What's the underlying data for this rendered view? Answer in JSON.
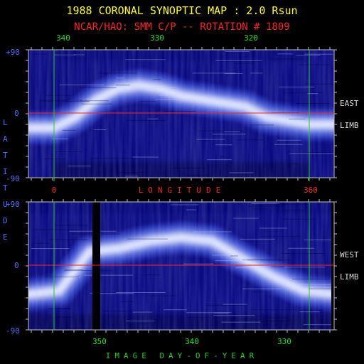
{
  "title": "1988 CORONAL SYNOPTIC MAP : 2.0 Rsun",
  "subtitle": "NCAR/HAO: SMM C/P -- ROTATION # 1809",
  "colors": {
    "title": "#ffff00",
    "subtitle": "#ff2020",
    "axis_label_blue": "#4a6cff",
    "bottom_label": "#20d020",
    "green_tick": "#20e020",
    "white_tick": "#d8d8d8",
    "red_line": "#ff2020",
    "green_line": "#20d020",
    "frame": "#c0c0c0"
  },
  "chart_data": [
    {
      "type": "heatmap",
      "panel": "top",
      "limb_label": [
        "EAST",
        "LIMB"
      ],
      "ylabel": "LATITUDE",
      "yticks": [
        "+90",
        "0",
        "-90"
      ],
      "ylim": [
        -90,
        90
      ],
      "top_axis_ticks": [
        340,
        330,
        320
      ],
      "bottom_axis_ticks": [
        0,
        360
      ],
      "xlabel": "LONGITUDE",
      "green_markers_longitude": [
        0,
        360
      ],
      "red_line_latitude": 0,
      "bright_band_latitude_by_longitude": {
        "longitude": [
          0,
          30,
          60,
          90,
          120,
          150,
          180,
          210,
          240,
          270,
          300,
          330,
          360
        ],
        "latitude": [
          -20,
          -5,
          20,
          35,
          40,
          35,
          25,
          20,
          15,
          10,
          -5,
          -10,
          -15
        ]
      }
    },
    {
      "type": "heatmap",
      "panel": "bottom",
      "limb_label": [
        "WEST",
        "LIMB"
      ],
      "yticks": [
        "+90",
        "0",
        "-90"
      ],
      "ylim": [
        -90,
        90
      ],
      "bottom_axis_ticks": [
        350,
        340,
        330
      ],
      "xlabel": "IMAGE DAY-OF-YEAR",
      "data_gaps": [
        "~352",
        "end"
      ],
      "red_line_latitude": 0,
      "bright_band_latitude_by_position": {
        "fraction": [
          0.0,
          0.1,
          0.2,
          0.3,
          0.4,
          0.5,
          0.6,
          0.7,
          0.8,
          0.9,
          1.0
        ],
        "latitude": [
          -40,
          -35,
          20,
          25,
          35,
          40,
          35,
          10,
          -15,
          -35,
          -40
        ]
      }
    }
  ]
}
